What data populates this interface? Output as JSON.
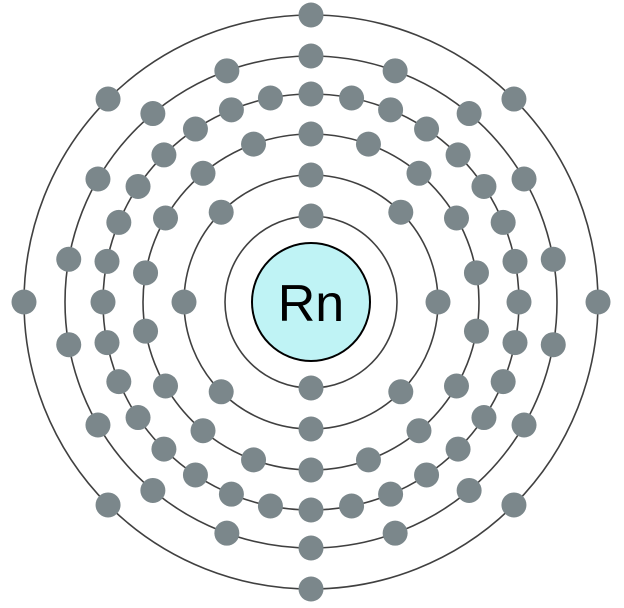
{
  "element": {
    "symbol": "Rn",
    "shell_electron_counts": [
      2,
      8,
      18,
      32,
      18,
      8
    ]
  },
  "colors": {
    "nucleus_fill": "#bff3f5",
    "electron_fill": "#7b878b",
    "shell_stroke": "#404040"
  }
}
